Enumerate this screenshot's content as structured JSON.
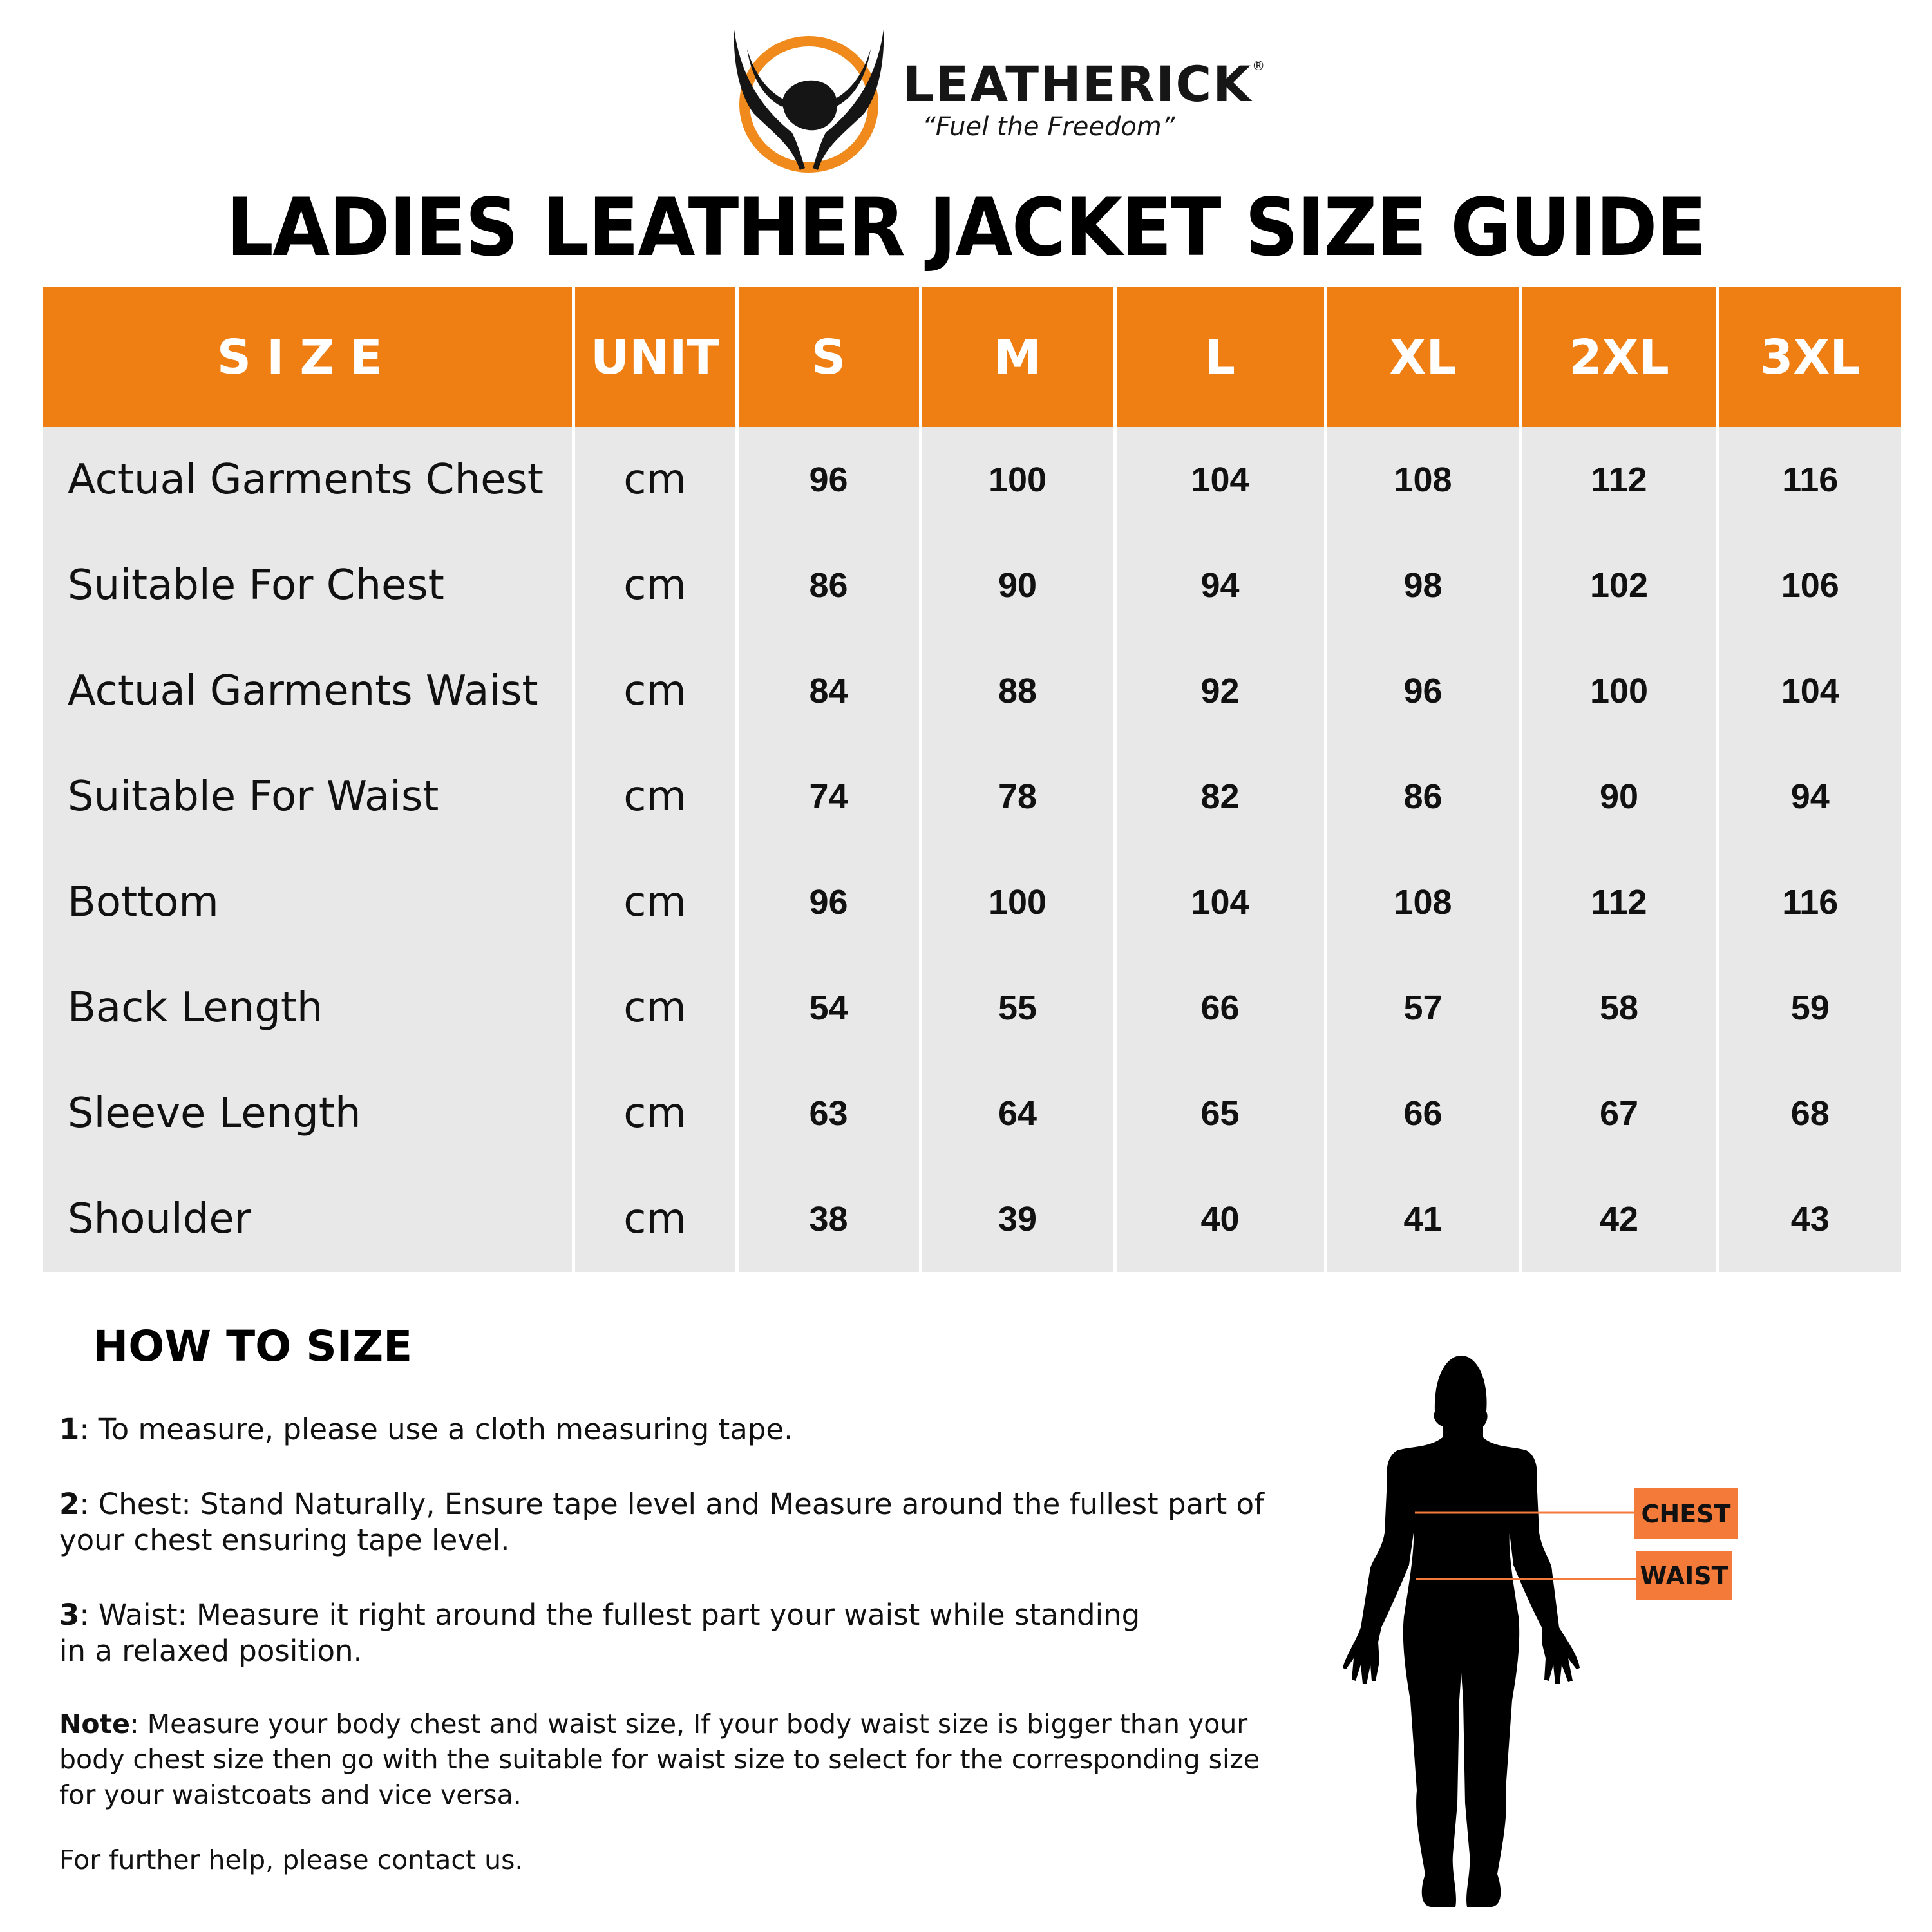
{
  "brand": {
    "name": "LEATHERICK",
    "registered": "®",
    "tagline": "“Fuel the Freedom”",
    "accent_color": "#f07f13"
  },
  "title": "LADIES LEATHER JACKET SIZE GUIDE",
  "table": {
    "header_color": "#f07f13",
    "row_color": "#e8e8e8",
    "headers": [
      "SIZE",
      "UNIT",
      "S",
      "M",
      "L",
      "XL",
      "2XL",
      "3XL"
    ],
    "rows": [
      {
        "label": "Actual Garments Chest",
        "unit": "cm",
        "values": [
          "96",
          "100",
          "104",
          "108",
          "112",
          "116"
        ]
      },
      {
        "label": "Suitable For Chest",
        "unit": "cm",
        "values": [
          "86",
          "90",
          "94",
          "98",
          "102",
          "106"
        ]
      },
      {
        "label": "Actual Garments Waist",
        "unit": "cm",
        "values": [
          "84",
          "88",
          "92",
          "96",
          "100",
          "104"
        ]
      },
      {
        "label": "Suitable For Waist",
        "unit": "cm",
        "values": [
          "74",
          "78",
          "82",
          "86",
          "90",
          "94"
        ]
      },
      {
        "label": "Bottom",
        "unit": "cm",
        "values": [
          "96",
          "100",
          "104",
          "108",
          "112",
          "116"
        ]
      },
      {
        "label": "Back Length",
        "unit": "cm",
        "values": [
          "54",
          "55",
          "66",
          "57",
          "58",
          "59"
        ]
      },
      {
        "label": "Sleeve Length",
        "unit": "cm",
        "values": [
          "63",
          "64",
          "65",
          "66",
          "67",
          "68"
        ]
      },
      {
        "label": "Shoulder",
        "unit": "cm",
        "values": [
          "38",
          "39",
          "40",
          "41",
          "42",
          "43"
        ]
      }
    ]
  },
  "how_to_size": {
    "heading": "HOW TO SIZE",
    "steps": [
      {
        "num": "1",
        "text": ": To measure, please use a cloth measuring tape."
      },
      {
        "num": "2",
        "text": ": Chest: Stand Naturally, Ensure tape level and Measure around the fullest part of your chest ensuring tape level."
      },
      {
        "num": "3",
        "text": ": Waist: Measure it right around the fullest part your waist while  standing in a relaxed position."
      },
      {
        "num": "Note",
        "text": ": Measure your body chest and waist size, If your body waist size is bigger than your body chest size then go with the suitable for waist size to select for the corresponding size for your waistcoats and vice versa."
      }
    ],
    "footer": "For further help, please contact us."
  },
  "figure": {
    "chest_label": "CHEST",
    "waist_label": "WAIST",
    "label_color": "#f47a3a"
  }
}
